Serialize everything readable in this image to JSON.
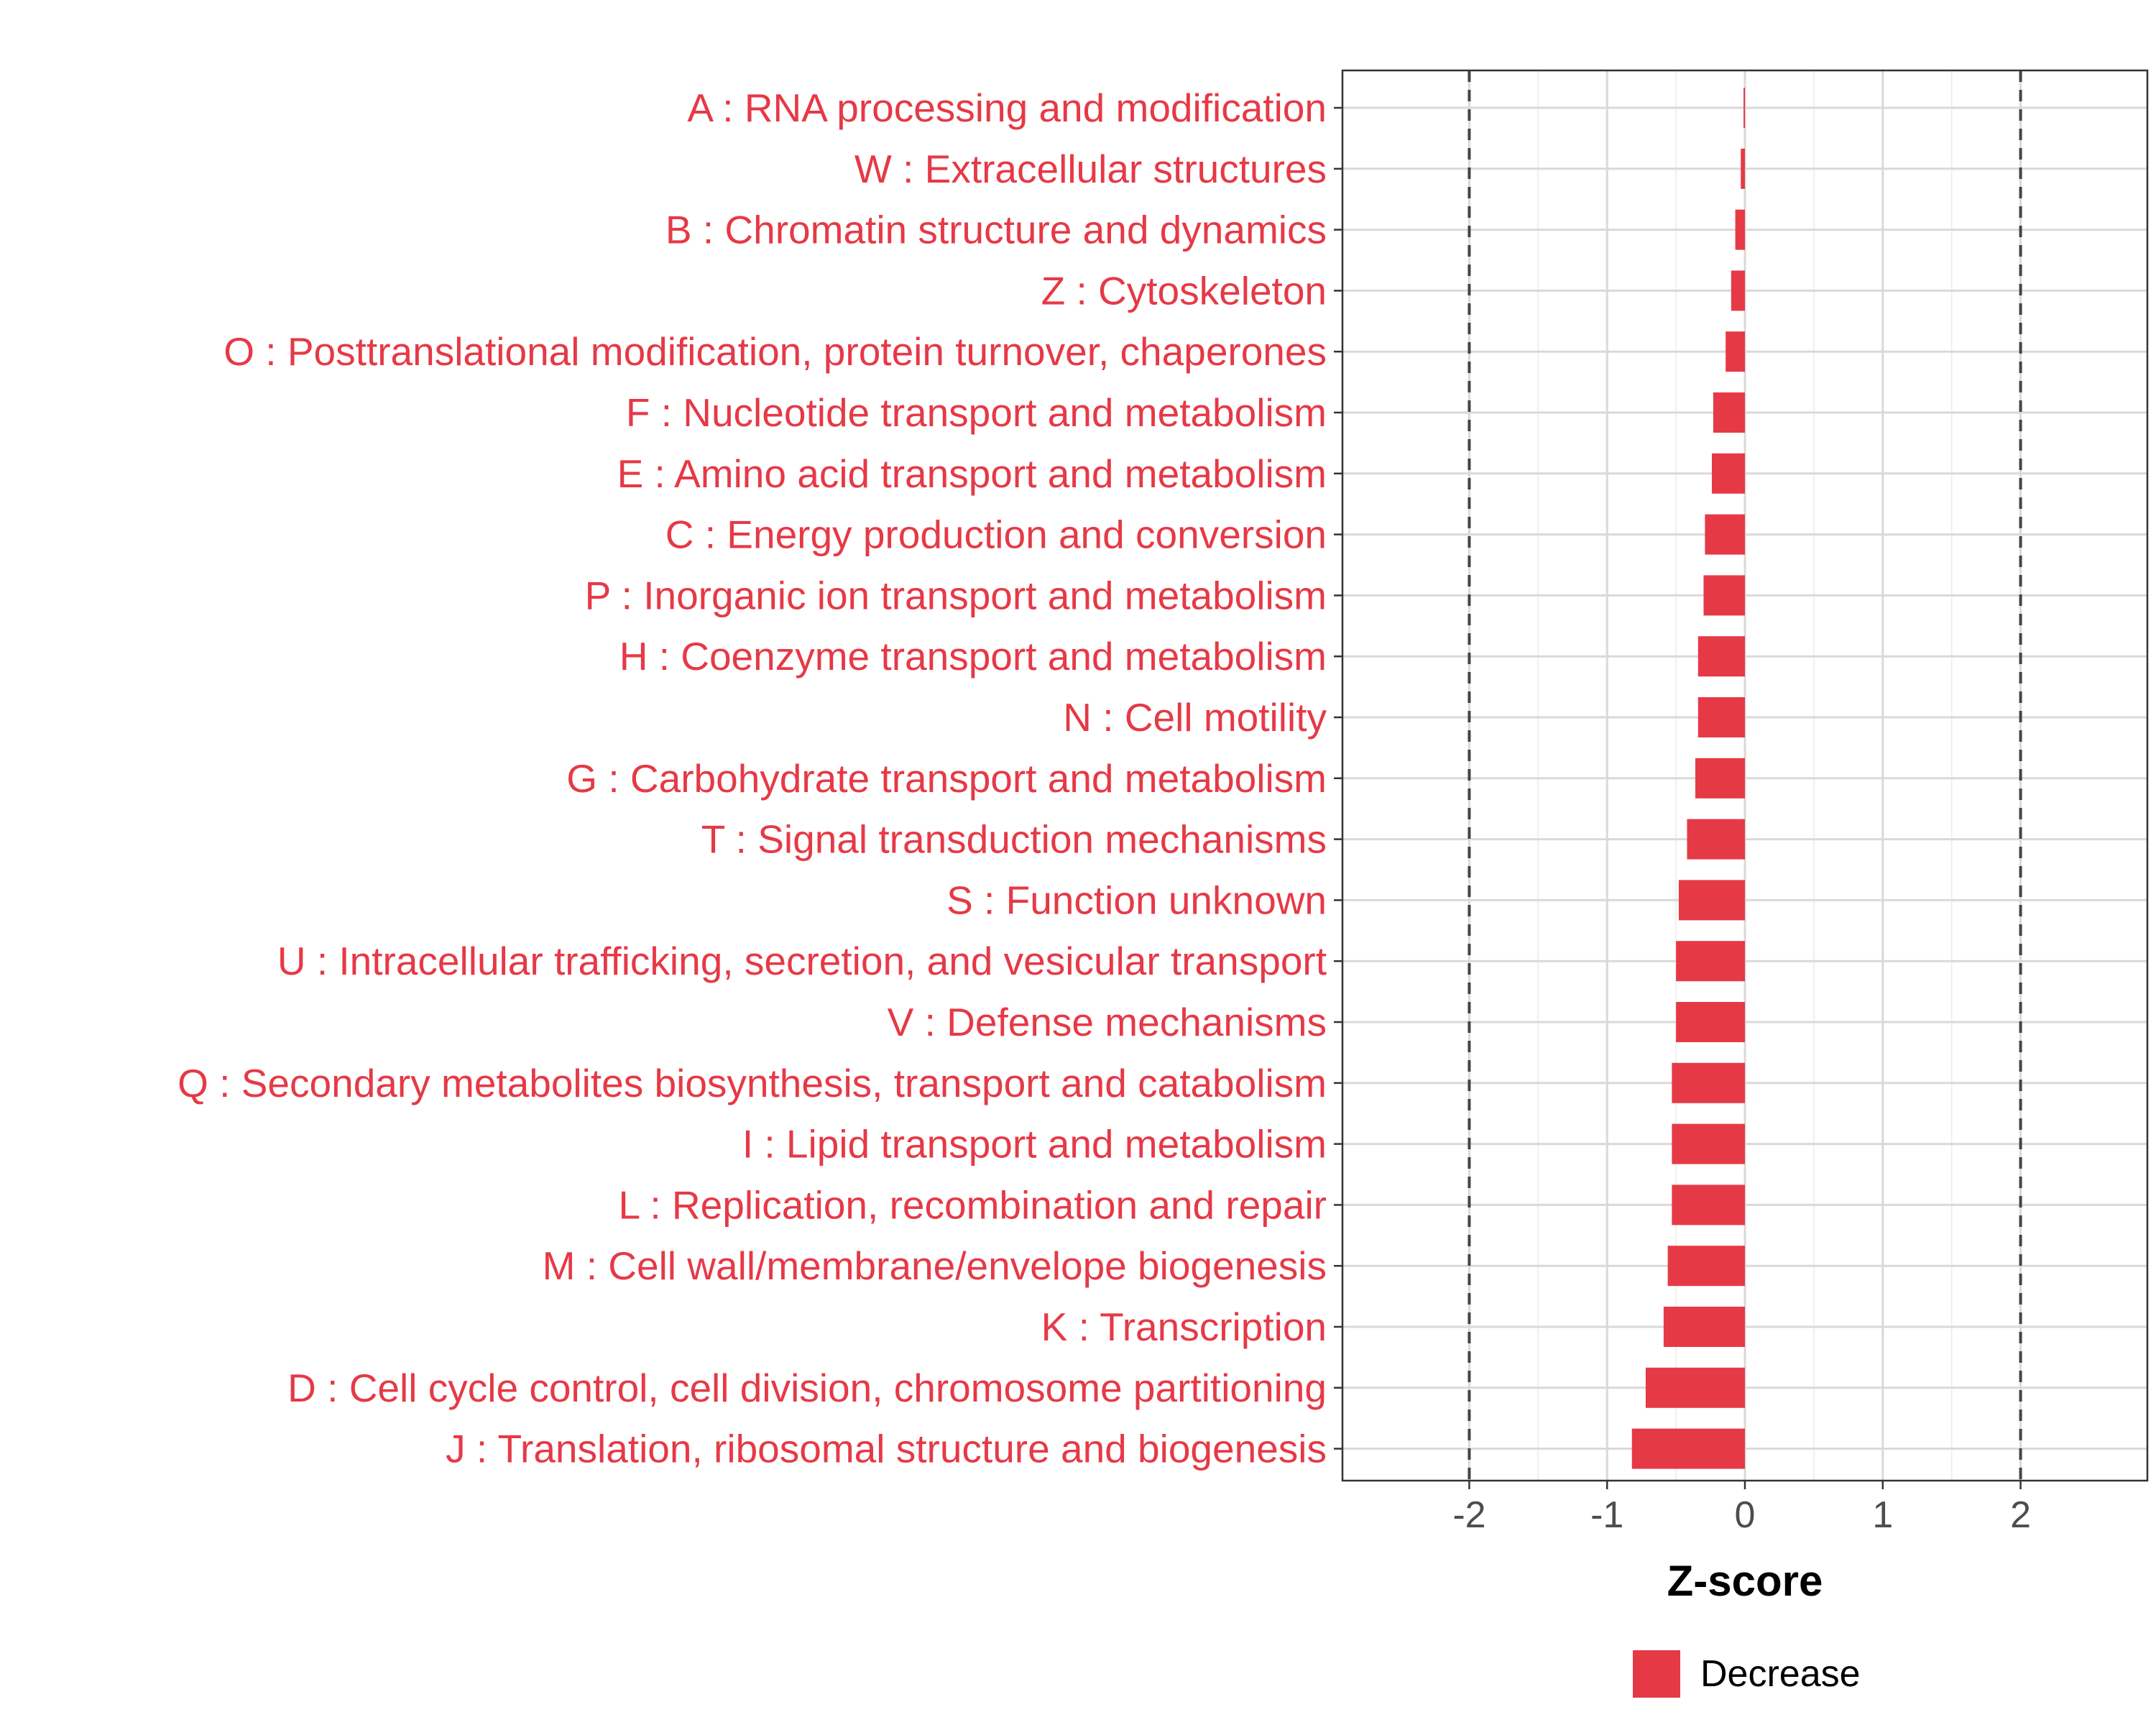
{
  "chart_data": {
    "type": "bar",
    "orientation": "horizontal",
    "title": "",
    "xlabel": "Z-score",
    "ylabel": "",
    "xlim": [
      -2.92,
      2.92
    ],
    "x_ticks": [
      -2,
      -1,
      0,
      1,
      2
    ],
    "x_tick_labels": [
      "-2",
      "-1",
      "0",
      "1",
      "2"
    ],
    "reference_lines": [
      -2,
      2
    ],
    "grid": true,
    "legend": {
      "position": "bottom",
      "entries": [
        {
          "label": "Decrease",
          "color": "#e63946"
        }
      ]
    },
    "label_color": "#e63946",
    "bar_color": "#e63946",
    "categories": [
      "A : RNA processing and modification",
      "W : Extracellular structures",
      "B : Chromatin structure and dynamics",
      "Z : Cytoskeleton",
      "O : Posttranslational modification, protein turnover, chaperones",
      "F : Nucleotide transport and metabolism",
      "E : Amino acid transport and metabolism",
      "C : Energy production and conversion",
      "P : Inorganic ion transport and metabolism",
      "H : Coenzyme transport and metabolism",
      "N : Cell motility",
      "G : Carbohydrate transport and metabolism",
      "T : Signal transduction mechanisms",
      "S : Function unknown",
      "U : Intracellular trafficking, secretion, and vesicular transport",
      "V : Defense mechanisms",
      "Q : Secondary metabolites biosynthesis, transport and catabolism",
      "I : Lipid transport and metabolism",
      "L : Replication, recombination and repair",
      "M : Cell wall/membrane/envelope biogenesis",
      "K : Transcription",
      "D : Cell cycle control, cell division, chromosome partitioning",
      "J : Translation, ribosomal structure and biogenesis"
    ],
    "values": [
      -0.01,
      -0.03,
      -0.07,
      -0.1,
      -0.14,
      -0.23,
      -0.24,
      -0.29,
      -0.3,
      -0.34,
      -0.34,
      -0.36,
      -0.42,
      -0.48,
      -0.5,
      -0.5,
      -0.53,
      -0.53,
      -0.53,
      -0.56,
      -0.59,
      -0.72,
      -0.82
    ]
  }
}
